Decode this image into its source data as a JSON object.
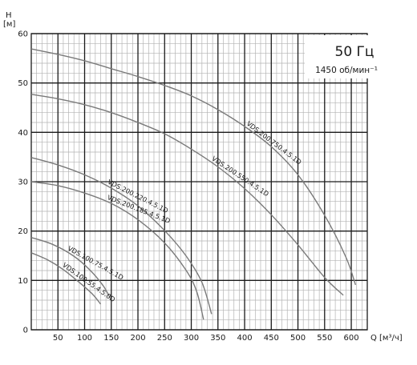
{
  "chart_data": {
    "type": "line",
    "title": "50 Гц",
    "subtitle": "1450 об/мин⁻¹",
    "y_unit_symbol": "H",
    "y_unit": "[м]",
    "x_unit_symbol": "Q",
    "x_unit": "[м³/ч]",
    "xlim": [
      0,
      630
    ],
    "ylim": [
      0,
      60
    ],
    "x_ticks": [
      50,
      100,
      150,
      200,
      250,
      300,
      350,
      400,
      450,
      500,
      550,
      600
    ],
    "y_ticks": [
      0,
      10,
      20,
      30,
      40,
      50,
      60
    ],
    "grid": true,
    "series": [
      {
        "name": "VDS.100.55.4.5.0D",
        "x": [
          0,
          30,
          60,
          90,
          115,
          130
        ],
        "y": [
          15.6,
          14.2,
          12.2,
          9.6,
          7.2,
          5.2
        ]
      },
      {
        "name": "VDS.100.75.4.5.1D",
        "x": [
          0,
          40,
          80,
          110,
          135,
          148
        ],
        "y": [
          18.7,
          17.3,
          14.9,
          12.1,
          8.9,
          6.4
        ]
      },
      {
        "name": "VDS.200.185.4.5.1D",
        "x": [
          0,
          50,
          100,
          150,
          200,
          250,
          290,
          310,
          323
        ],
        "y": [
          30.0,
          29.2,
          27.7,
          25.6,
          22.3,
          17.6,
          12.1,
          7.8,
          2.1
        ]
      },
      {
        "name": "VDS.200.220.4.5.1D",
        "x": [
          0,
          50,
          100,
          150,
          200,
          250,
          290,
          320,
          338
        ],
        "y": [
          34.9,
          33.4,
          31.4,
          28.7,
          25.1,
          20.1,
          15.0,
          9.6,
          3.2
        ]
      },
      {
        "name": "VDS.200.550.4.5.1D",
        "x": [
          0,
          50,
          100,
          150,
          200,
          250,
          300,
          350,
          400,
          450,
          500,
          550,
          585
        ],
        "y": [
          47.7,
          46.8,
          45.6,
          44.0,
          42.0,
          39.7,
          36.6,
          33.0,
          28.6,
          23.3,
          17.2,
          10.6,
          7.0
        ]
      },
      {
        "name": "VDS.200.750.4.5.1D",
        "x": [
          0,
          50,
          100,
          150,
          200,
          250,
          300,
          350,
          400,
          450,
          500,
          550,
          590,
          608
        ],
        "y": [
          56.9,
          55.8,
          54.5,
          52.9,
          51.3,
          49.5,
          47.4,
          44.6,
          41.2,
          37.1,
          31.4,
          23.2,
          14.7,
          9.1
        ]
      }
    ]
  }
}
